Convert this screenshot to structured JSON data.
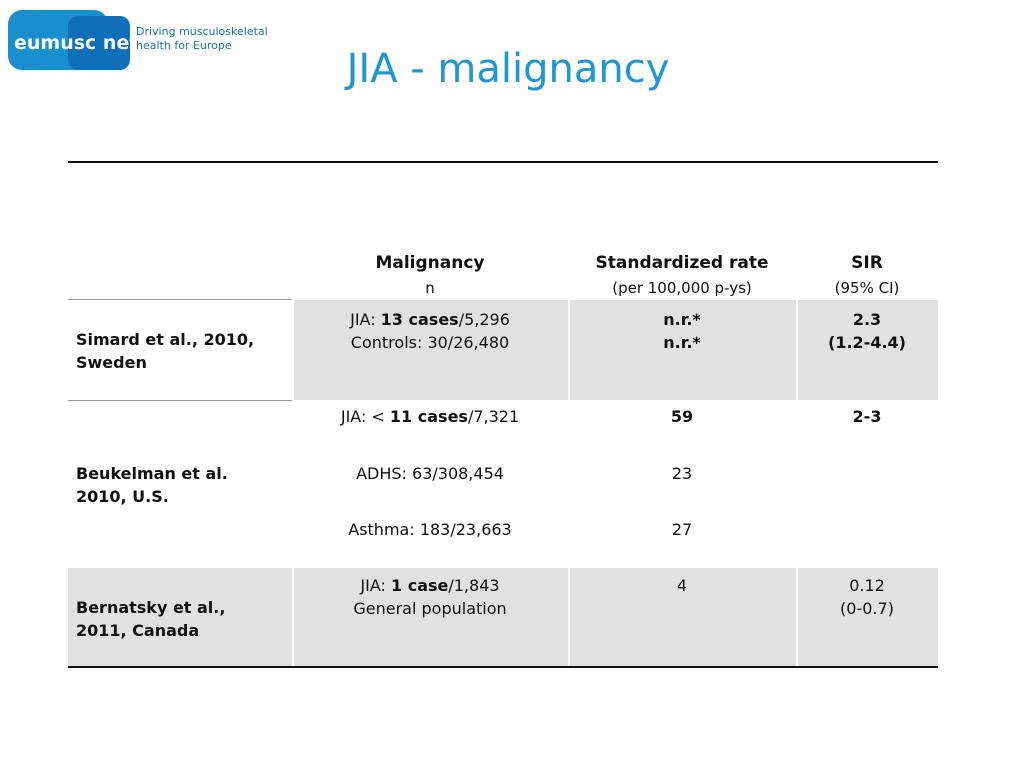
{
  "logo": {
    "brand": "eumusc net",
    "tagline_1": "Driving musculoskeletal",
    "tagline_2": "health for Europe"
  },
  "title": "JIA - malignancy",
  "table": {
    "header": [
      {
        "title": "Malignancy",
        "sub": "n"
      },
      {
        "title": "Standardized rate",
        "sub": "(per 100,000 p-ys)"
      },
      {
        "title": "SIR",
        "sub": "(95% CI)"
      }
    ],
    "rows": [
      {
        "study": [
          "Simard et al., 2010,",
          "Sweden"
        ],
        "shaded": true,
        "entries": [
          {
            "strong": true,
            "n": [
              [
                "JIA: ",
                "13 cases",
                "/5,296"
              ],
              [
                "Controls: 30/26,480"
              ]
            ],
            "rate": [
              "n.r.*",
              "n.r.*"
            ],
            "sir": [
              "2.3",
              "(1.2-4.4)"
            ]
          }
        ]
      },
      {
        "study": [
          "Beukelman et al.",
          "2010, U.S."
        ],
        "shaded": false,
        "entries": [
          {
            "strong": true,
            "n": [
              [
                "JIA: < ",
                "11 cases",
                "/7,321"
              ]
            ],
            "rate": [
              "59"
            ],
            "sir": [
              "2-3"
            ]
          },
          {
            "strong": false,
            "n": [
              [
                "ADHS: 63/308,454"
              ]
            ],
            "rate": [
              "23"
            ]
          },
          {
            "strong": false,
            "n": [
              [
                "Asthma: 183/23,663"
              ]
            ],
            "rate": [
              "27"
            ]
          }
        ]
      },
      {
        "study": [
          "Bernatsky et al.,",
          "2011, Canada"
        ],
        "shaded": true,
        "entries": [
          {
            "strong": false,
            "n": [
              [
                "JIA: ",
                "1 case",
                "/1,843"
              ],
              [
                "General population"
              ]
            ],
            "rate": [
              "4"
            ],
            "sir": [
              "0.12",
              "(0-0.7)"
            ]
          }
        ]
      }
    ]
  }
}
